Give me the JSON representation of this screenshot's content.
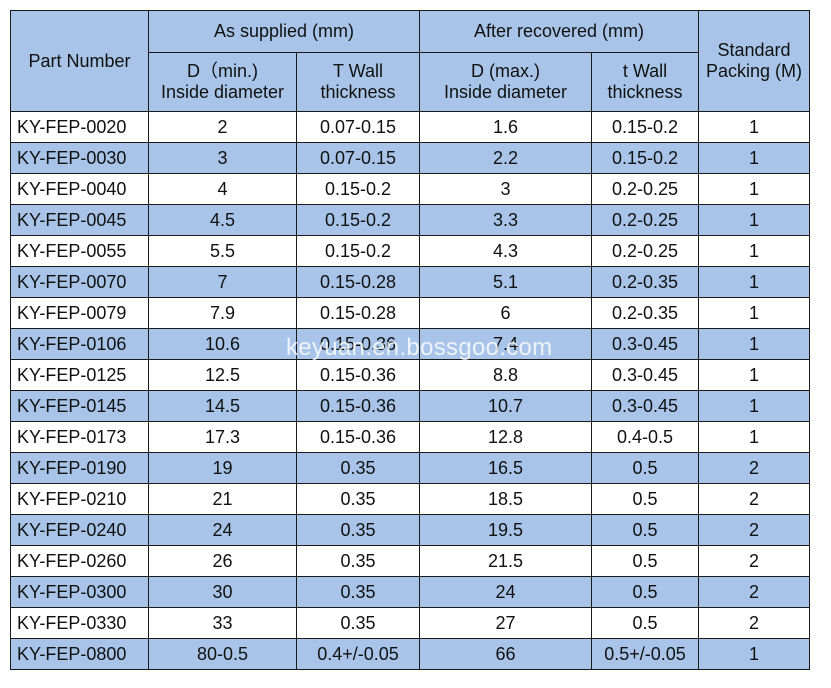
{
  "headers": {
    "part_number": "Part Number",
    "as_supplied": "As supplied (mm)",
    "after_recovered": "After recovered (mm)",
    "standard_packing_line1": "Standard",
    "standard_packing_line2": "Packing (M)",
    "d_min_line1": "D（min.)",
    "d_min_line2": "Inside diameter",
    "t_wall_line1": "T  Wall",
    "t_wall_line2": "thickness",
    "d_max_line1": "D (max.)",
    "d_max_line2": "Inside diameter",
    "t_wall2_line1": "t Wall",
    "t_wall2_line2": "thickness"
  },
  "rows": [
    {
      "part": "KY-FEP-0020",
      "d_min": "2",
      "t_wall": "0.07-0.15",
      "d_max": "1.6",
      "t_wall_rec": "0.15-0.2",
      "packing": "1"
    },
    {
      "part": "KY-FEP-0030",
      "d_min": "3",
      "t_wall": "0.07-0.15",
      "d_max": "2.2",
      "t_wall_rec": "0.15-0.2",
      "packing": "1"
    },
    {
      "part": "KY-FEP-0040",
      "d_min": "4",
      "t_wall": "0.15-0.2",
      "d_max": "3",
      "t_wall_rec": "0.2-0.25",
      "packing": "1"
    },
    {
      "part": "KY-FEP-0045",
      "d_min": "4.5",
      "t_wall": "0.15-0.2",
      "d_max": "3.3",
      "t_wall_rec": "0.2-0.25",
      "packing": "1"
    },
    {
      "part": "KY-FEP-0055",
      "d_min": "5.5",
      "t_wall": "0.15-0.2",
      "d_max": "4.3",
      "t_wall_rec": "0.2-0.25",
      "packing": "1"
    },
    {
      "part": "KY-FEP-0070",
      "d_min": "7",
      "t_wall": "0.15-0.28",
      "d_max": "5.1",
      "t_wall_rec": "0.2-0.35",
      "packing": "1"
    },
    {
      "part": "KY-FEP-0079",
      "d_min": "7.9",
      "t_wall": "0.15-0.28",
      "d_max": "6",
      "t_wall_rec": "0.2-0.35",
      "packing": "1"
    },
    {
      "part": "KY-FEP-0106",
      "d_min": "10.6",
      "t_wall": "0.15-0.36",
      "d_max": "7.4",
      "t_wall_rec": "0.3-0.45",
      "packing": "1"
    },
    {
      "part": "KY-FEP-0125",
      "d_min": "12.5",
      "t_wall": "0.15-0.36",
      "d_max": "8.8",
      "t_wall_rec": "0.3-0.45",
      "packing": "1"
    },
    {
      "part": "KY-FEP-0145",
      "d_min": "14.5",
      "t_wall": "0.15-0.36",
      "d_max": "10.7",
      "t_wall_rec": "0.3-0.45",
      "packing": "1"
    },
    {
      "part": "KY-FEP-0173",
      "d_min": "17.3",
      "t_wall": "0.15-0.36",
      "d_max": "12.8",
      "t_wall_rec": "0.4-0.5",
      "packing": "1"
    },
    {
      "part": "KY-FEP-0190",
      "d_min": "19",
      "t_wall": "0.35",
      "d_max": "16.5",
      "t_wall_rec": "0.5",
      "packing": "2"
    },
    {
      "part": "KY-FEP-0210",
      "d_min": "21",
      "t_wall": "0.35",
      "d_max": "18.5",
      "t_wall_rec": "0.5",
      "packing": "2"
    },
    {
      "part": "KY-FEP-0240",
      "d_min": "24",
      "t_wall": "0.35",
      "d_max": "19.5",
      "t_wall_rec": "0.5",
      "packing": "2"
    },
    {
      "part": "KY-FEP-0260",
      "d_min": "26",
      "t_wall": "0.35",
      "d_max": "21.5",
      "t_wall_rec": "0.5",
      "packing": "2"
    },
    {
      "part": "KY-FEP-0300",
      "d_min": "30",
      "t_wall": "0.35",
      "d_max": "24",
      "t_wall_rec": "0.5",
      "packing": "2"
    },
    {
      "part": "KY-FEP-0330",
      "d_min": "33",
      "t_wall": "0.35",
      "d_max": "27",
      "t_wall_rec": "0.5",
      "packing": "2"
    },
    {
      "part": "KY-FEP-0800",
      "d_min": "80-0.5",
      "t_wall": "0.4+/-0.05",
      "d_max": "66",
      "t_wall_rec": "0.5+/-0.05",
      "packing": "1"
    }
  ],
  "watermark": "keyuan.en.bossgoo.com",
  "colors": {
    "header_bg": "#a8c4e8",
    "alt_row_bg": "#a8c4e8",
    "border": "#1a1a1a"
  }
}
